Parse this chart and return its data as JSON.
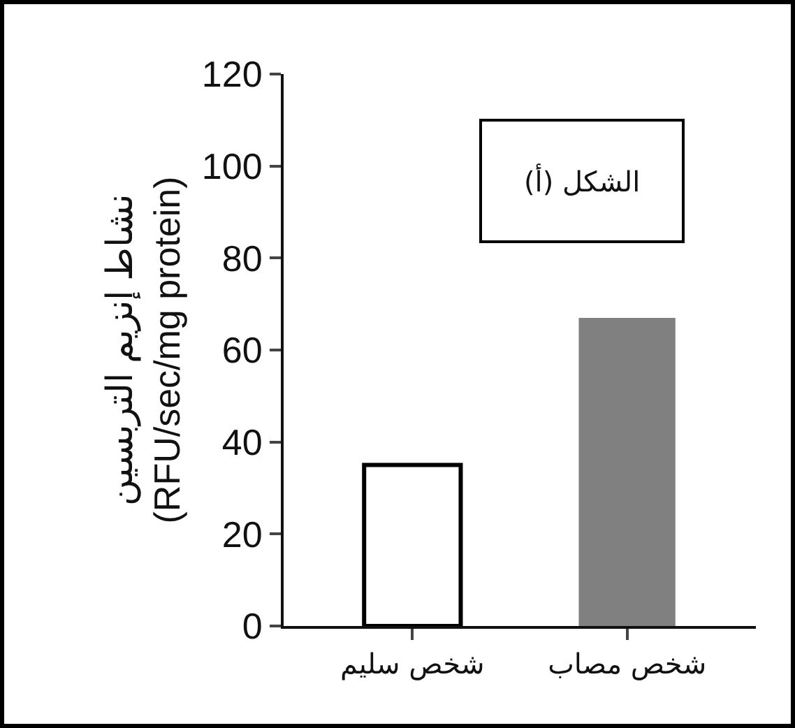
{
  "chart_data": {
    "type": "bar",
    "title": "الشكل (أ)",
    "ylabel": "نشاط إنزيم التربسين\n(RFU/sec/mg protein)",
    "categories": [
      "شخص سليم",
      "شخص مصاب"
    ],
    "values": [
      35,
      67
    ],
    "colors": [
      "#ffffff",
      "#808080"
    ],
    "ylim": [
      0,
      120
    ],
    "yticks": [
      0,
      20,
      40,
      60,
      80,
      100,
      120
    ],
    "grid": false,
    "legend": false
  }
}
